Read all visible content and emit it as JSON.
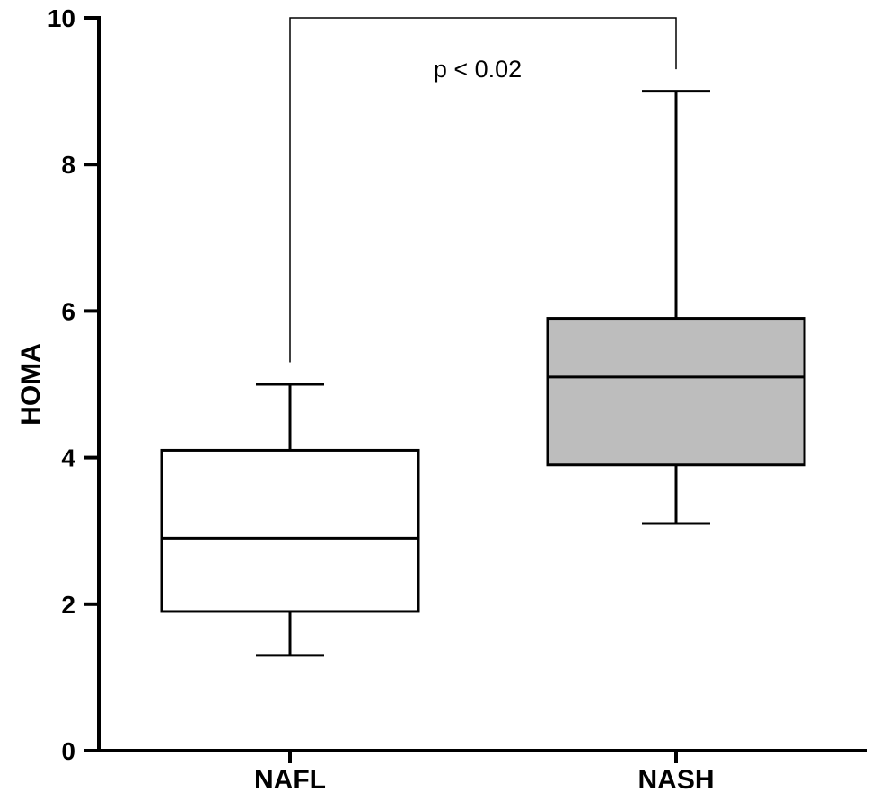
{
  "chart_data": {
    "type": "box",
    "title": "",
    "xlabel": "",
    "ylabel": "HOMA",
    "ylim": [
      0,
      10
    ],
    "yticks": [
      0,
      2,
      4,
      6,
      8,
      10
    ],
    "grid": false,
    "categories": [
      "NAFL",
      "NASH"
    ],
    "boxes": [
      {
        "category": "NAFL",
        "min": 1.3,
        "q1": 1.9,
        "median": 2.9,
        "q3": 4.1,
        "max": 5.0,
        "fill": "#ffffff"
      },
      {
        "category": "NASH",
        "min": 3.1,
        "q1": 3.9,
        "median": 5.1,
        "q3": 5.9,
        "max": 9.0,
        "fill": "#bdbdbd"
      }
    ],
    "annotation": {
      "text": "p < 0.02",
      "between": [
        "NAFL",
        "NASH"
      ],
      "bracket_top": 10.0,
      "left_end": 5.3,
      "right_end": 9.3
    }
  }
}
